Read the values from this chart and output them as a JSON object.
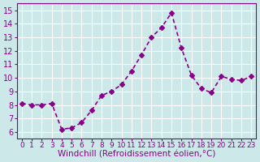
{
  "x": [
    0,
    1,
    2,
    3,
    4,
    5,
    6,
    7,
    8,
    9,
    10,
    11,
    12,
    13,
    14,
    15,
    16,
    17,
    18,
    19,
    20,
    21,
    22,
    23
  ],
  "y": [
    8.1,
    8.0,
    8.0,
    8.1,
    6.2,
    6.3,
    6.7,
    7.6,
    8.7,
    9.0,
    9.5,
    10.5,
    11.7,
    13.0,
    13.7,
    14.8,
    12.2,
    10.2,
    9.2,
    8.9,
    10.1,
    9.9,
    9.8,
    10.1
  ],
  "line_color": "#8B008B",
  "marker": "D",
  "marker_size": 3,
  "line_width": 1.2,
  "xlabel": "Windchill (Refroidissement éolien,°C)",
  "xlabel_fontsize": 7.5,
  "ylabel_fontsize": 7,
  "tick_fontsize": 7,
  "ylim": [
    5.5,
    15.5
  ],
  "xlim": [
    -0.5,
    23.5
  ],
  "yticks": [
    6,
    7,
    8,
    9,
    10,
    11,
    12,
    13,
    14,
    15
  ],
  "xticks": [
    0,
    1,
    2,
    3,
    4,
    5,
    6,
    7,
    8,
    9,
    10,
    11,
    12,
    13,
    14,
    15,
    16,
    17,
    18,
    19,
    20,
    21,
    22,
    23
  ],
  "background_color": "#cce8e8",
  "grid_color": "#ffffff",
  "axes_color": "#8B008B"
}
